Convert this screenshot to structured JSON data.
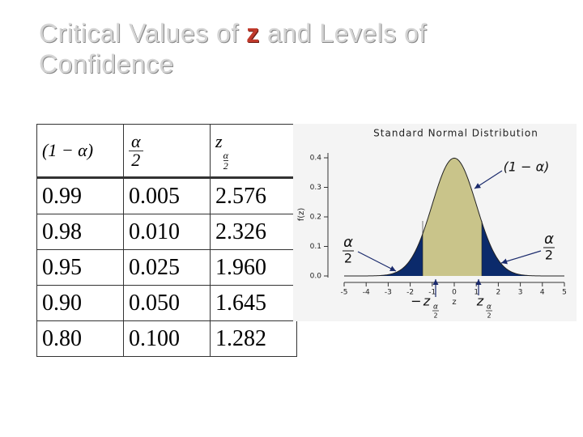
{
  "title": {
    "before": "Critical Values of ",
    "variable": "z",
    "after": " and Levels of Confidence"
  },
  "table": {
    "header": [
      {
        "text": "(1 − α)"
      },
      {
        "numerator": "α",
        "denominator": "2"
      },
      {
        "base": "z",
        "sub_numerator": "α",
        "sub_denominator": "2"
      }
    ],
    "rows": [
      [
        "0.99",
        "0.005",
        "2.576"
      ],
      [
        "0.98",
        "0.010",
        "2.326"
      ],
      [
        "0.95",
        "0.025",
        "1.960"
      ],
      [
        "0.90",
        "0.050",
        "1.645"
      ],
      [
        "0.80",
        "0.100",
        "1.282"
      ]
    ]
  },
  "chart": {
    "title": "Standard Normal Distribution",
    "y_label": "f(z)",
    "x_label": "z",
    "xlim": [
      -5,
      5
    ],
    "ylim": [
      0,
      0.4
    ],
    "xticks": [
      -5,
      -4,
      -3,
      -2,
      -1,
      0,
      1,
      2,
      3,
      4,
      5
    ],
    "yticks": [
      {
        "value": 0,
        "label": "0.0"
      },
      {
        "value": 0.1,
        "label": "0.1"
      },
      {
        "value": 0.2,
        "label": "0.2"
      },
      {
        "value": 0.3,
        "label": "0.3"
      },
      {
        "value": 0.4,
        "label": "0.4"
      }
    ],
    "annotations": {
      "center": "(1 − α)",
      "tail": {
        "numerator": "α",
        "denominator": "2"
      },
      "lower": {
        "sign": "−",
        "base": "z",
        "sub_numerator": "α",
        "sub_denominator": "2"
      },
      "upper": {
        "base": "z",
        "sub_numerator": "α",
        "sub_denominator": "2"
      }
    }
  }
}
